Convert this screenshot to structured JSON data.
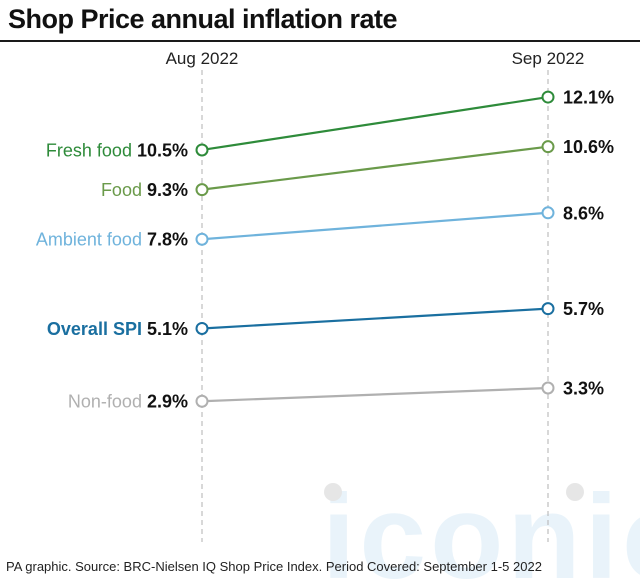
{
  "title": "Shop Price annual inflation rate",
  "footer": "PA graphic. Source: BRC-Nielsen IQ Shop Price Index. Period Covered: September 1-5 2022",
  "watermark": "iconic",
  "chart_data": {
    "type": "line",
    "title": "Shop Price annual inflation rate",
    "categories": [
      "Aug 2022",
      "Sep 2022"
    ],
    "series": [
      {
        "name": "Fresh food",
        "values": [
          10.5,
          12.1
        ],
        "labels": [
          "10.5%",
          "12.1%"
        ],
        "color": "#2e8b3a",
        "bold": false
      },
      {
        "name": "Food",
        "values": [
          9.3,
          10.6
        ],
        "labels": [
          "9.3%",
          "10.6%"
        ],
        "color": "#6a9a4a",
        "bold": false
      },
      {
        "name": "Ambient food",
        "values": [
          7.8,
          8.6
        ],
        "labels": [
          "7.8%",
          "8.6%"
        ],
        "color": "#6fb3dc",
        "bold": false
      },
      {
        "name": "Overall SPI",
        "values": [
          5.1,
          5.7
        ],
        "labels": [
          "5.1%",
          "5.7%"
        ],
        "color": "#1a6fa0",
        "bold": true
      },
      {
        "name": "Non-food",
        "values": [
          2.9,
          3.3
        ],
        "labels": [
          "2.9%",
          "3.3%"
        ],
        "color": "#b0b0b0",
        "bold": false
      }
    ],
    "ylim": [
      0,
      16
    ],
    "grid": false,
    "legend": "inline-left"
  }
}
